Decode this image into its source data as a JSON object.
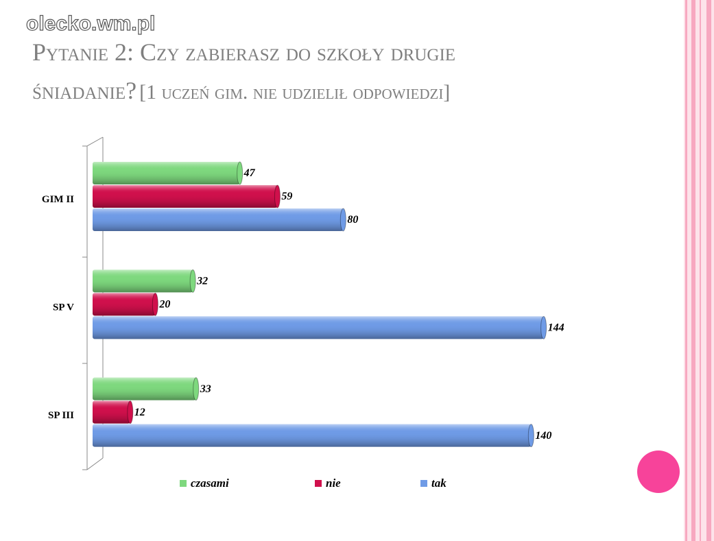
{
  "watermark": "olecko.wm.pl",
  "chart_data": {
    "type": "bar",
    "orientation": "horizontal",
    "title": "Pytanie 2: Czy zabierasz do szkoły drugie",
    "title_line2": "śniadanie?",
    "subtitle": "[1 uczeń gim. nie udzielił odpowiedzi]",
    "categories": [
      "GIM II",
      "SP V",
      "SP III"
    ],
    "series": [
      {
        "name": "czasami",
        "color": "#7ed87e",
        "values": [
          47,
          32,
          33
        ]
      },
      {
        "name": "nie",
        "color": "#d0104c",
        "values": [
          59,
          20,
          12
        ]
      },
      {
        "name": "tak",
        "color": "#6f9be6",
        "values": [
          80,
          144,
          140
        ]
      }
    ],
    "xlim": [
      0,
      150
    ],
    "legend": "bottom"
  }
}
